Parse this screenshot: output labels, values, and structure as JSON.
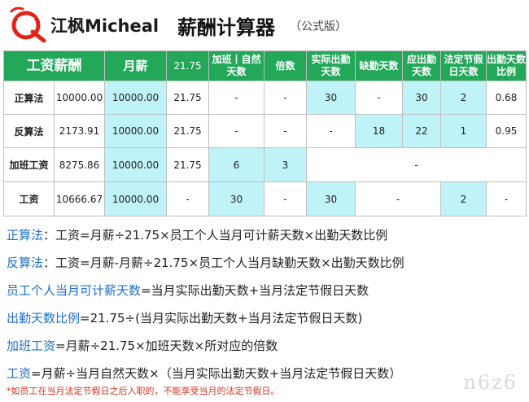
{
  "header": {
    "logo_text": "江枫Micheal",
    "title": "薪酬计算器",
    "subtitle": "（公式版）"
  },
  "table": {
    "headers": [
      "工资薪酬",
      "月薪",
      "21.75",
      "加班丨自然天数",
      "倍数",
      "实际出勤天数",
      "缺勤天数",
      "应出勤天数",
      "法定节假日天数",
      "出勤天数比例"
    ],
    "rows": [
      {
        "label": "正算法",
        "salary": "10000.00",
        "monthly": "10000.00",
        "factor": "21.75",
        "natural_days": "-",
        "multiple": "-",
        "actual_days": "30",
        "absent_days": "-",
        "due_days": "30",
        "holidays": "2",
        "ratio": "0.68"
      },
      {
        "label": "反算法",
        "salary": "2173.91",
        "monthly": "10000.00",
        "factor": "21.75",
        "natural_days": "-",
        "multiple": "-",
        "actual_days": "-",
        "absent_days": "18",
        "due_days": "22",
        "holidays": "1",
        "ratio": "0.95"
      },
      {
        "label": "加班工资",
        "salary": "8275.86",
        "monthly": "10000.00",
        "factor": "21.75",
        "natural_days": "6",
        "multiple": "3",
        "rest": "-"
      },
      {
        "label": "工资",
        "salary": "10666.67",
        "monthly": "10000.00",
        "factor": "-",
        "natural_days": "30",
        "multiple": "-",
        "actual_days": "30",
        "absent_due": "-",
        "holidays": "2",
        "ratio": "-"
      }
    ]
  },
  "formulas": [
    {
      "kw": "正算法",
      "text": "：工资=月薪÷21.75×员工个人当月可计薪天数×出勤天数比例"
    },
    {
      "kw": "反算法",
      "text": "：工资=月薪-月薪÷21.75×员工个人当月缺勤天数×出勤天数比例"
    },
    {
      "kw": "员工个人当月可计薪天数",
      "text": "=当月实际出勤天数+当月法定节假日天数"
    },
    {
      "kw": "出勤天数比例",
      "text": "=21.75÷(当月实际出勤天数+当月法定节假日天数)"
    },
    {
      "kw": "加班工资",
      "text": "=月薪÷21.75×加班天数×所对应的倍数"
    },
    {
      "kw": "工资",
      "text": "=月薪÷当月自然天数×（当月实际出勤天数+当月法定节假日天数）"
    }
  ],
  "note": "*如员工在当月法定节假日之后入职的，不能享受当月的法定节假日。",
  "watermark": "n6z6",
  "colors": {
    "header_green": "#23a85a",
    "highlight_cyan": "#bff3f7",
    "keyword_blue": "#1e6fd0",
    "note_red": "#e0301e"
  }
}
